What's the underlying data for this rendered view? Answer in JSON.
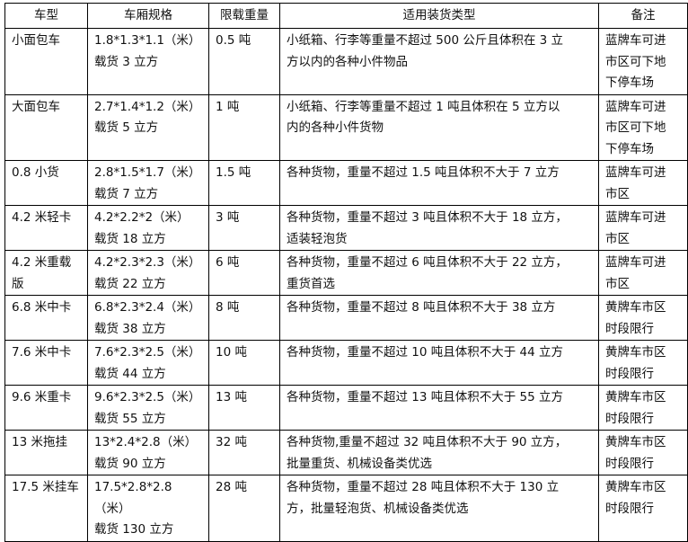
{
  "headers": [
    "车型",
    "车厢规格",
    "限载重量",
    "适用装货类型",
    "备注"
  ],
  "rows": [
    [
      "小面包车",
      "1.8*1.3*1.1（米）\n载货 3 立方",
      "0.5 吨",
      "小纸箱、行李等重量不超过 500 公斤且体积在 3 立\n方以内的各种小件物品",
      "蓝牌车可进\n市区可下地\n下停车场"
    ],
    [
      "大面包车",
      "2.7*1.4*1.2（米）\n载货 5 立方",
      "1 吨",
      "小纸箱、行李等重量不超过 1 吨且体积在 5 立方以\n内的各种小件货物",
      "蓝牌车可进\n市区可下地\n下停车场"
    ],
    [
      "0.8 小货",
      "2.8*1.5*1.7（米）\n载货 7 立方",
      "1.5 吨",
      "各种货物，重量不超过 1.5 吨且体积不大于 7 立方",
      "蓝牌车可进\n市区"
    ],
    [
      "4.2 米轻卡",
      "4.2*2.2*2（米）\n载货 18 立方",
      "3 吨",
      "各种货物，重量不超过 3 吨且体积不大于 18 立方，\n适装轻泡货",
      "蓝牌车可进\n市区"
    ],
    [
      "4.2 米重载\n版",
      "4.2*2.3*2.3（米）\n载货 22 立方",
      "6 吨",
      "各种货物，重量不超过 6 吨且体积不大于 22 立方，\n重货首选",
      "蓝牌车可进\n市区"
    ],
    [
      "6.8 米中卡",
      "6.8*2.3*2.4（米）\n载货 38 立方",
      "8 吨",
      "各种货物，重量不超过 8 吨且体积不大于 38 立方",
      "黄牌车市区\n时段限行"
    ],
    [
      "7.6 米中卡",
      "7.6*2.3*2.5（米）\n载货 44 立方",
      "10 吨",
      "各种货物，重量不超过 10 吨且体积不大于 44 立方",
      "黄牌车市区\n时段限行"
    ],
    [
      "9.6 米重卡",
      "9.6*2.3*2.5（米）\n载货 55 立方",
      "13 吨",
      "各种货物，重量不超过 13 吨且体积不大于 55 立方",
      "黄牌车市区\n时段限行"
    ],
    [
      "13 米拖挂",
      "13*2.4*2.8（米）\n载货 90 立方",
      "32 吨",
      "各种货物,重量不超过 32 吨且体积不大于 90 立方，\n批量重货、机械设备类优选",
      "黄牌车市区\n时段限行"
    ],
    [
      "17.5 米挂车",
      "17.5*2.8*2.8（米）\n载货 130 立方",
      "28 吨",
      "各种货物，重量不超过 28 吨且体积不大于 130 立\n方，批量轻泡货、机械设备类优选",
      "黄牌车市区\n时段限行"
    ]
  ]
}
